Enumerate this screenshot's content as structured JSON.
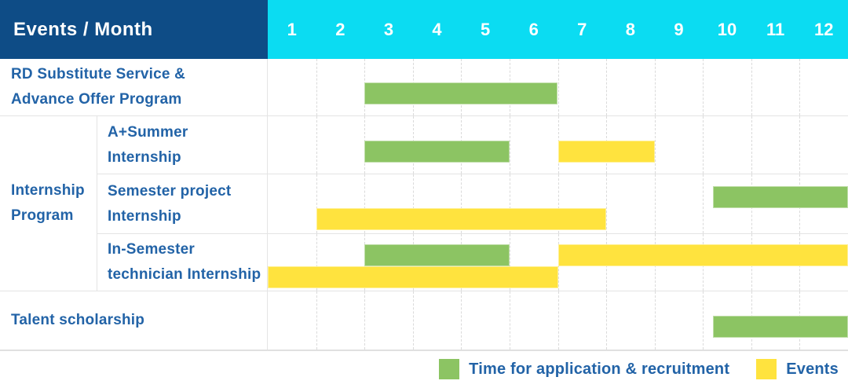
{
  "header": {
    "title": "Events / Month",
    "months": [
      "1",
      "2",
      "3",
      "4",
      "5",
      "6",
      "7",
      "8",
      "9",
      "10",
      "11",
      "12"
    ]
  },
  "colors": {
    "header_dark_blue": "#0e4c86",
    "header_cyan": "#0bdcf2",
    "label_text_blue": "#2263a7",
    "green": "#8cc463",
    "yellow": "#ffe33e"
  },
  "group": {
    "label_lines": [
      "Internship",
      "Program"
    ]
  },
  "rows": [
    {
      "id": "rd-substitute-service-advance-offer-program",
      "label_lines": [
        "RD Substitute Service &",
        "Advance Offer Program"
      ],
      "tracks": 1,
      "bars": [
        {
          "color": "green",
          "start_month": 3.0,
          "end_month": 7.0,
          "track": 0
        }
      ]
    },
    {
      "id": "a-plus-summer-internship",
      "label_lines": [
        "A+Summer",
        "Internship"
      ],
      "tracks": 1,
      "bars": [
        {
          "color": "green",
          "start_month": 3.0,
          "end_month": 6.0,
          "track": 0
        },
        {
          "color": "yellow",
          "start_month": 7.0,
          "end_month": 9.0,
          "track": 0
        }
      ]
    },
    {
      "id": "semester-project-internship",
      "label_lines": [
        "Semester project",
        "Internship"
      ],
      "tracks": 2,
      "bars": [
        {
          "color": "green",
          "start_month": 10.2,
          "end_month": 13.0,
          "track": 0
        },
        {
          "color": "yellow",
          "start_month": 2.0,
          "end_month": 8.0,
          "track": 1
        }
      ]
    },
    {
      "id": "in-semester-technician-internship",
      "label_lines": [
        "In-Semester",
        "technician Internship"
      ],
      "tracks": 2,
      "bars": [
        {
          "color": "green",
          "start_month": 3.0,
          "end_month": 6.0,
          "track": 0
        },
        {
          "color": "yellow",
          "start_month": 7.0,
          "end_month": 13.0,
          "track": 0
        },
        {
          "color": "yellow",
          "start_month": 1.0,
          "end_month": 7.0,
          "track": 1
        }
      ]
    },
    {
      "id": "talent-scholarship",
      "label_lines": [
        "Talent scholarship"
      ],
      "tracks": 1,
      "bars": [
        {
          "color": "green",
          "start_month": 10.2,
          "end_month": 13.0,
          "track": 0
        }
      ]
    }
  ],
  "legend": [
    {
      "color": "green",
      "label": "Time for application & recruitment"
    },
    {
      "color": "yellow",
      "label": "Events"
    }
  ],
  "chart_data": {
    "type": "table",
    "title": "Events / Month",
    "x_axis": {
      "label": "Month",
      "ticks": [
        1,
        2,
        3,
        4,
        5,
        6,
        7,
        8,
        9,
        10,
        11,
        12
      ]
    },
    "legend_position": "bottom-right",
    "grid": "dashed-vertical-month-lines",
    "series": [
      {
        "name": "RD Substitute Service & Advance Offer Program",
        "group": null,
        "bars": [
          {
            "type": "Time for application & recruitment",
            "months": [
              3,
              6
            ]
          }
        ]
      },
      {
        "name": "A+Summer Internship",
        "group": "Internship Program",
        "bars": [
          {
            "type": "Time for application & recruitment",
            "months": [
              3,
              5
            ]
          },
          {
            "type": "Events",
            "months": [
              7,
              8
            ]
          }
        ]
      },
      {
        "name": "Semester project Internship",
        "group": "Internship Program",
        "bars": [
          {
            "type": "Time for application & recruitment",
            "months": [
              10,
              12
            ]
          },
          {
            "type": "Events",
            "months": [
              2,
              7
            ]
          }
        ]
      },
      {
        "name": "In-Semester technician Internship",
        "group": "Internship Program",
        "bars": [
          {
            "type": "Time for application & recruitment",
            "months": [
              3,
              5
            ]
          },
          {
            "type": "Events",
            "months": [
              7,
              12
            ]
          },
          {
            "type": "Events",
            "months": [
              1,
              6
            ]
          }
        ]
      },
      {
        "name": "Talent scholarship",
        "group": null,
        "bars": [
          {
            "type": "Time for application & recruitment",
            "months": [
              10,
              12
            ]
          }
        ]
      }
    ]
  }
}
